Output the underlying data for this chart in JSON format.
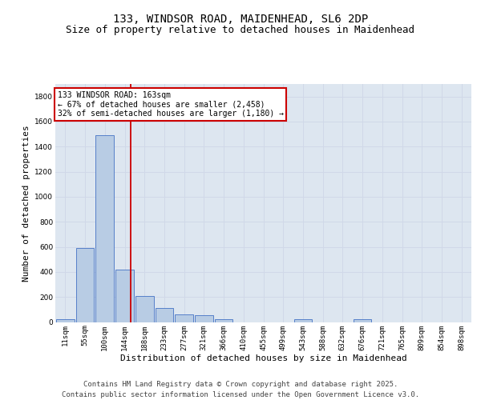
{
  "title_line1": "133, WINDSOR ROAD, MAIDENHEAD, SL6 2DP",
  "title_line2": "Size of property relative to detached houses in Maidenhead",
  "xlabel": "Distribution of detached houses by size in Maidenhead",
  "ylabel": "Number of detached properties",
  "categories": [
    "11sqm",
    "55sqm",
    "100sqm",
    "144sqm",
    "188sqm",
    "233sqm",
    "277sqm",
    "321sqm",
    "366sqm",
    "410sqm",
    "455sqm",
    "499sqm",
    "543sqm",
    "588sqm",
    "632sqm",
    "676sqm",
    "721sqm",
    "765sqm",
    "809sqm",
    "854sqm",
    "898sqm"
  ],
  "values": [
    20,
    590,
    1490,
    420,
    210,
    110,
    60,
    55,
    20,
    0,
    0,
    0,
    20,
    0,
    0,
    20,
    0,
    0,
    0,
    0,
    0
  ],
  "bar_color": "#b8cce4",
  "bar_edge_color": "#4472c4",
  "grid_color": "#d0d8e8",
  "background_color": "#dde6f0",
  "annotation_text": "133 WINDSOR ROAD: 163sqm\n← 67% of detached houses are smaller (2,458)\n32% of semi-detached houses are larger (1,180) →",
  "annotation_box_color": "#ffffff",
  "annotation_box_edge": "#cc0000",
  "vline_x": 3.3,
  "ylim": [
    0,
    1900
  ],
  "yticks": [
    0,
    200,
    400,
    600,
    800,
    1000,
    1200,
    1400,
    1600,
    1800
  ],
  "footer_line1": "Contains HM Land Registry data © Crown copyright and database right 2025.",
  "footer_line2": "Contains public sector information licensed under the Open Government Licence v3.0.",
  "title_fontsize": 10,
  "subtitle_fontsize": 9,
  "tick_fontsize": 6.5,
  "axis_label_fontsize": 8,
  "footer_fontsize": 6.5,
  "annotation_fontsize": 7
}
